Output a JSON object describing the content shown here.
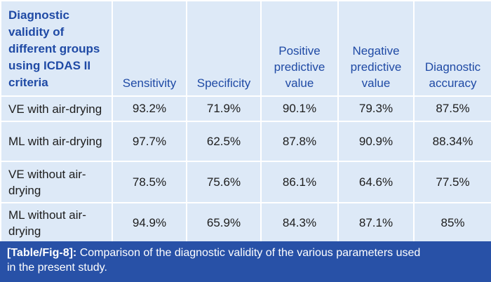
{
  "table": {
    "header": {
      "first_col": "Diagnostic validity of different groups using ICDAS II criteria",
      "first_col_lines": [
        "Diagnostic",
        "validity of",
        "different groups",
        "using ICDAS II",
        "criteria"
      ],
      "columns": [
        {
          "lines": [
            "Sensitivity"
          ]
        },
        {
          "lines": [
            "Specificity"
          ]
        },
        {
          "lines": [
            "Positive",
            "predictive",
            "value"
          ]
        },
        {
          "lines": [
            "Negative",
            "predictive",
            "value"
          ]
        },
        {
          "lines": [
            "Diagnostic",
            "accuracy"
          ]
        }
      ]
    },
    "rows": [
      {
        "label_lines": [
          "VE with air-drying"
        ],
        "values": [
          "93.2%",
          "71.9%",
          "90.1%",
          "79.3%",
          "87.5%"
        ]
      },
      {
        "label_lines": [
          "ML with air-drying"
        ],
        "values": [
          "97.7%",
          "62.5%",
          "87.8%",
          "90.9%",
          "88.34%"
        ]
      },
      {
        "label_lines": [
          "VE without air-",
          "drying"
        ],
        "values": [
          "78.5%",
          "75.6%",
          "86.1%",
          "64.6%",
          "77.5%"
        ]
      },
      {
        "label_lines": [
          "ML without air-",
          "drying"
        ],
        "values": [
          "94.9%",
          "65.9%",
          "84.3%",
          "87.1%",
          "85%"
        ]
      }
    ]
  },
  "caption": {
    "label": "[Table/Fig-8]:",
    "text_line1": "Comparison of the diagnostic validity of the various parameters used",
    "text_line2": "in the present study."
  },
  "colors": {
    "cell_background": "#dde9f7",
    "header_text": "#1f4aa5",
    "caption_background": "#2851a7",
    "body_text": "#1d1d1d"
  }
}
